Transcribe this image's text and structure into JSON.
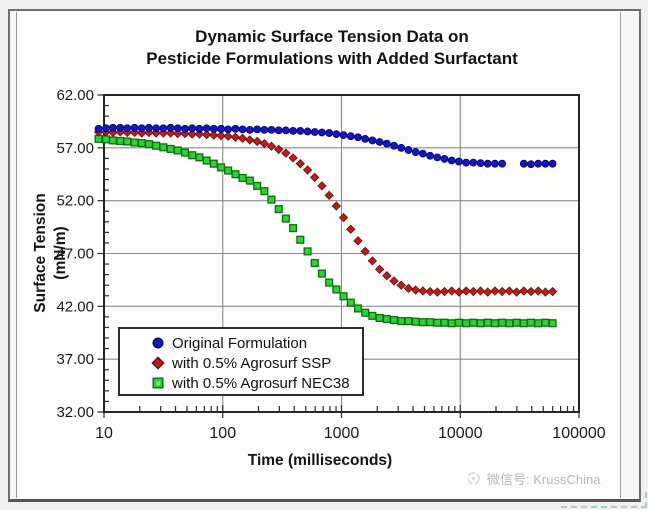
{
  "chart_data": {
    "type": "scatter",
    "title": [
      "Dynamic Surface Tension Data on",
      "Pesticide Formulations with Added Surfactant"
    ],
    "xlabel": "Time (milliseconds)",
    "ylabel": [
      "Surface Tension",
      "(mN/m)"
    ],
    "x_scale": "log",
    "xlim": [
      10,
      100000
    ],
    "ylim": [
      32,
      62
    ],
    "grid": true,
    "legend_position": "inside-bottom-left",
    "x_ticks": [
      {
        "value": 10,
        "label": "10"
      },
      {
        "value": 100,
        "label": "100"
      },
      {
        "value": 1000,
        "label": "1000"
      },
      {
        "value": 10000,
        "label": "10000"
      },
      {
        "value": 100000,
        "label": "100000"
      }
    ],
    "y_ticks": [
      {
        "value": 62,
        "label": "62.00"
      },
      {
        "value": 57,
        "label": "57.00"
      },
      {
        "value": 52,
        "label": "52.00"
      },
      {
        "value": 47,
        "label": "47.00"
      },
      {
        "value": 42,
        "label": "42.00"
      },
      {
        "value": 37,
        "label": "37.00"
      },
      {
        "value": 32,
        "label": "32.00"
      }
    ],
    "colors": {
      "grid": "#8c8c8c",
      "frame": "#262626",
      "tick_label": "#1a1a1a"
    },
    "series": [
      {
        "name": "Original Formulation",
        "marker": "circle",
        "color": "#1717b8",
        "edge": "#000078",
        "points": [
          [
            9,
            58.8
          ],
          [
            10.4,
            58.85
          ],
          [
            11.9,
            58.9
          ],
          [
            13.7,
            58.9
          ],
          [
            15.7,
            58.85
          ],
          [
            18.1,
            58.9
          ],
          [
            20.8,
            58.85
          ],
          [
            23.9,
            58.9
          ],
          [
            27.5,
            58.85
          ],
          [
            31.6,
            58.85
          ],
          [
            36.4,
            58.9
          ],
          [
            41.8,
            58.85
          ],
          [
            48.1,
            58.8
          ],
          [
            55.3,
            58.85
          ],
          [
            63.6,
            58.8
          ],
          [
            73.2,
            58.85
          ],
          [
            84.1,
            58.8
          ],
          [
            96.8,
            58.8
          ],
          [
            111,
            58.75
          ],
          [
            128,
            58.8
          ],
          [
            147,
            58.75
          ],
          [
            169,
            58.7
          ],
          [
            195,
            58.75
          ],
          [
            224,
            58.7
          ],
          [
            257,
            58.7
          ],
          [
            296,
            58.65
          ],
          [
            340,
            58.65
          ],
          [
            391,
            58.6
          ],
          [
            450,
            58.6
          ],
          [
            518,
            58.55
          ],
          [
            595,
            58.5
          ],
          [
            684,
            58.45
          ],
          [
            787,
            58.4
          ],
          [
            905,
            58.3
          ],
          [
            1041,
            58.2
          ],
          [
            1197,
            58.1
          ],
          [
            1377,
            58.0
          ],
          [
            1583,
            57.85
          ],
          [
            1821,
            57.7
          ],
          [
            2094,
            57.55
          ],
          [
            2408,
            57.4
          ],
          [
            2769,
            57.2
          ],
          [
            3185,
            57.0
          ],
          [
            3663,
            56.8
          ],
          [
            4212,
            56.6
          ],
          [
            4844,
            56.45
          ],
          [
            5571,
            56.25
          ],
          [
            6407,
            56.1
          ],
          [
            7368,
            55.95
          ],
          [
            8473,
            55.8
          ],
          [
            9744,
            55.7
          ],
          [
            11206,
            55.6
          ],
          [
            12887,
            55.6
          ],
          [
            14820,
            55.55
          ],
          [
            17043,
            55.5
          ],
          [
            19599,
            55.5
          ],
          [
            22539,
            55.5
          ],
          [
            34279,
            55.5
          ],
          [
            39421,
            55.45
          ],
          [
            45334,
            55.5
          ],
          [
            52134,
            55.5
          ],
          [
            59954,
            55.5
          ]
        ]
      },
      {
        "name": "with 0.5% Agrosurf SSP",
        "marker": "diamond",
        "color": "#b91e1e",
        "edge": "#6d0c0c",
        "points": [
          [
            9,
            58.5
          ],
          [
            10.4,
            58.5
          ],
          [
            11.9,
            58.45
          ],
          [
            13.7,
            58.5
          ],
          [
            15.7,
            58.45
          ],
          [
            18.1,
            58.45
          ],
          [
            20.8,
            58.4
          ],
          [
            23.9,
            58.45
          ],
          [
            27.5,
            58.4
          ],
          [
            31.6,
            58.4
          ],
          [
            36.4,
            58.4
          ],
          [
            41.8,
            58.35
          ],
          [
            48.1,
            58.35
          ],
          [
            55.3,
            58.3
          ],
          [
            63.6,
            58.3
          ],
          [
            73.2,
            58.25
          ],
          [
            84.1,
            58.2
          ],
          [
            96.8,
            58.15
          ],
          [
            111,
            58.1
          ],
          [
            128,
            58.0
          ],
          [
            147,
            57.9
          ],
          [
            169,
            57.75
          ],
          [
            195,
            57.6
          ],
          [
            224,
            57.4
          ],
          [
            257,
            57.15
          ],
          [
            296,
            56.85
          ],
          [
            340,
            56.5
          ],
          [
            391,
            56.05
          ],
          [
            450,
            55.5
          ],
          [
            518,
            54.9
          ],
          [
            595,
            54.2
          ],
          [
            684,
            53.4
          ],
          [
            787,
            52.5
          ],
          [
            905,
            51.5
          ],
          [
            1041,
            50.4
          ],
          [
            1197,
            49.3
          ],
          [
            1377,
            48.2
          ],
          [
            1583,
            47.2
          ],
          [
            1821,
            46.3
          ],
          [
            2094,
            45.5
          ],
          [
            2408,
            44.9
          ],
          [
            2769,
            44.4
          ],
          [
            3185,
            44.0
          ],
          [
            3663,
            43.7
          ],
          [
            4212,
            43.55
          ],
          [
            4844,
            43.45
          ],
          [
            5571,
            43.4
          ],
          [
            6407,
            43.35
          ],
          [
            7368,
            43.4
          ],
          [
            8473,
            43.45
          ],
          [
            9744,
            43.35
          ],
          [
            11206,
            43.45
          ],
          [
            12887,
            43.4
          ],
          [
            14820,
            43.45
          ],
          [
            17043,
            43.35
          ],
          [
            19599,
            43.45
          ],
          [
            22539,
            43.4
          ],
          [
            25920,
            43.45
          ],
          [
            29808,
            43.35
          ],
          [
            34279,
            43.45
          ],
          [
            39421,
            43.4
          ],
          [
            45334,
            43.45
          ],
          [
            52134,
            43.35
          ],
          [
            59954,
            43.4
          ]
        ]
      },
      {
        "name": "with 0.5% Agrosurf NEC38",
        "marker": "square",
        "color": "#2ed133",
        "edge": "#0c6e12",
        "points": [
          [
            9,
            57.85
          ],
          [
            10.4,
            57.8
          ],
          [
            11.9,
            57.7
          ],
          [
            13.7,
            57.65
          ],
          [
            15.7,
            57.6
          ],
          [
            18.1,
            57.5
          ],
          [
            20.8,
            57.45
          ],
          [
            23.9,
            57.35
          ],
          [
            27.5,
            57.2
          ],
          [
            31.6,
            57.05
          ],
          [
            36.4,
            56.9
          ],
          [
            41.8,
            56.75
          ],
          [
            48.1,
            56.55
          ],
          [
            55.3,
            56.3
          ],
          [
            63.6,
            56.1
          ],
          [
            73.2,
            55.8
          ],
          [
            84.1,
            55.5
          ],
          [
            96.8,
            55.15
          ],
          [
            111,
            54.85
          ],
          [
            128,
            54.5
          ],
          [
            147,
            54.15
          ],
          [
            169,
            53.9
          ],
          [
            195,
            53.4
          ],
          [
            224,
            52.9
          ],
          [
            257,
            52.1
          ],
          [
            296,
            51.2
          ],
          [
            340,
            50.3
          ],
          [
            391,
            49.4
          ],
          [
            450,
            48.3
          ],
          [
            518,
            47.2
          ],
          [
            595,
            46.1
          ],
          [
            684,
            45.1
          ],
          [
            787,
            44.25
          ],
          [
            905,
            43.6
          ],
          [
            1041,
            42.95
          ],
          [
            1197,
            42.35
          ],
          [
            1377,
            41.8
          ],
          [
            1583,
            41.4
          ],
          [
            1821,
            41.1
          ],
          [
            2094,
            40.9
          ],
          [
            2408,
            40.8
          ],
          [
            2769,
            40.7
          ],
          [
            3185,
            40.6
          ],
          [
            3663,
            40.6
          ],
          [
            4212,
            40.55
          ],
          [
            4844,
            40.5
          ],
          [
            5571,
            40.5
          ],
          [
            6407,
            40.45
          ],
          [
            7368,
            40.45
          ],
          [
            8473,
            40.4
          ],
          [
            9744,
            40.45
          ],
          [
            11206,
            40.4
          ],
          [
            12887,
            40.45
          ],
          [
            14820,
            40.4
          ],
          [
            17043,
            40.45
          ],
          [
            19599,
            40.4
          ],
          [
            22539,
            40.45
          ],
          [
            25920,
            40.4
          ],
          [
            29808,
            40.45
          ],
          [
            34279,
            40.4
          ],
          [
            39421,
            40.45
          ],
          [
            45334,
            40.4
          ],
          [
            52134,
            40.45
          ],
          [
            59954,
            40.4
          ]
        ]
      }
    ]
  },
  "watermark": {
    "text": "微信号: KrussChina"
  }
}
